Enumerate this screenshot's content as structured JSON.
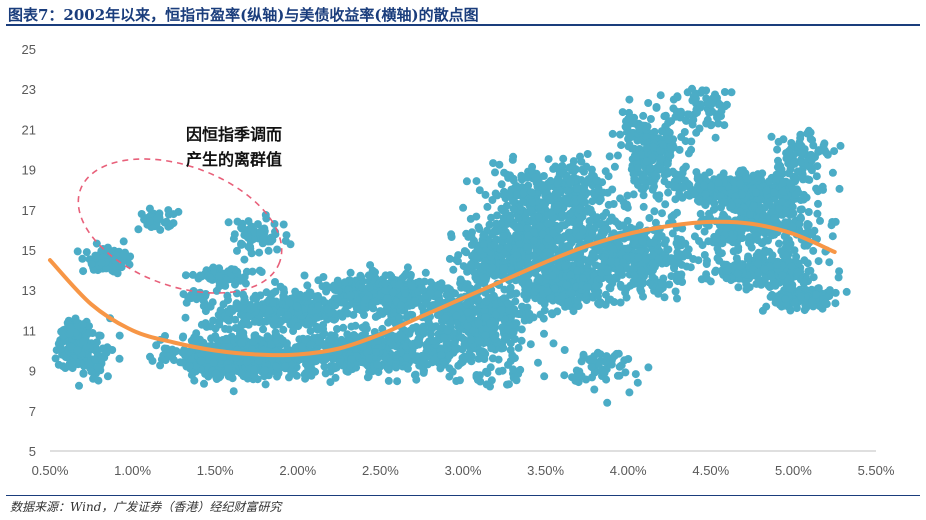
{
  "header": {
    "title": "图表7：2002年以来，恒指市盈率(纵轴)与美债收益率(横轴)的散点图"
  },
  "footer": {
    "source": "数据来源：Wind，广发证券（香港）经纪财富研究"
  },
  "chart_data": {
    "type": "scatter",
    "title": "",
    "xlabel": "",
    "ylabel": "",
    "xlim": [
      0.005,
      0.055
    ],
    "ylim": [
      5,
      25
    ],
    "x_ticks": [
      0.005,
      0.01,
      0.015,
      0.02,
      0.025,
      0.03,
      0.035,
      0.04,
      0.045,
      0.05,
      0.055
    ],
    "x_tick_labels": [
      "0.50%",
      "1.00%",
      "1.50%",
      "2.00%",
      "2.50%",
      "3.00%",
      "3.50%",
      "4.00%",
      "4.50%",
      "5.00%",
      "5.50%"
    ],
    "y_ticks": [
      5,
      7,
      9,
      11,
      13,
      15,
      17,
      19,
      21,
      23,
      25
    ],
    "y_tick_labels": [
      "5",
      "7",
      "9",
      "11",
      "13",
      "15",
      "17",
      "19",
      "21",
      "23",
      "25"
    ],
    "grid": false,
    "point_color": "#4bacc6",
    "trend_color": "#f79646",
    "outlier_ellipse_color": "#e8607a",
    "annotation": {
      "lines": [
        "因恒指季调而",
        "产生的离群值"
      ]
    },
    "series": [
      {
        "kind": "scatter",
        "clusters": [
          {
            "cx": 0.0165,
            "cy": 9.7,
            "sx": 0.0025,
            "sy": 0.7,
            "n": 700
          },
          {
            "cx": 0.0245,
            "cy": 9.9,
            "sx": 0.0035,
            "sy": 0.7,
            "n": 500
          },
          {
            "cx": 0.0195,
            "cy": 12.0,
            "sx": 0.0035,
            "sy": 0.6,
            "n": 350
          },
          {
            "cx": 0.0255,
            "cy": 12.9,
            "sx": 0.0025,
            "sy": 0.7,
            "n": 300
          },
          {
            "cx": 0.0305,
            "cy": 11.4,
            "sx": 0.0025,
            "sy": 1.2,
            "n": 450
          },
          {
            "cx": 0.0315,
            "cy": 14.5,
            "sx": 0.0012,
            "sy": 0.6,
            "n": 90
          },
          {
            "cx": 0.036,
            "cy": 13.3,
            "sx": 0.002,
            "sy": 0.8,
            "n": 300
          },
          {
            "cx": 0.0345,
            "cy": 15.3,
            "sx": 0.0025,
            "sy": 1.3,
            "n": 450
          },
          {
            "cx": 0.0355,
            "cy": 17.8,
            "sx": 0.0025,
            "sy": 1.0,
            "n": 300
          },
          {
            "cx": 0.0405,
            "cy": 14.8,
            "sx": 0.0025,
            "sy": 1.2,
            "n": 350
          },
          {
            "cx": 0.0415,
            "cy": 19.8,
            "sx": 0.0015,
            "sy": 1.3,
            "n": 220
          },
          {
            "cx": 0.047,
            "cy": 18.0,
            "sx": 0.0025,
            "sy": 0.5,
            "n": 350
          },
          {
            "cx": 0.048,
            "cy": 16.2,
            "sx": 0.0025,
            "sy": 0.9,
            "n": 280
          },
          {
            "cx": 0.0485,
            "cy": 13.9,
            "sx": 0.002,
            "sy": 0.5,
            "n": 200
          },
          {
            "cx": 0.0505,
            "cy": 12.6,
            "sx": 0.0012,
            "sy": 0.35,
            "n": 150
          },
          {
            "cx": 0.0505,
            "cy": 19.7,
            "sx": 0.0012,
            "sy": 0.7,
            "n": 80
          },
          {
            "cx": 0.0445,
            "cy": 22.0,
            "sx": 0.0012,
            "sy": 0.8,
            "n": 60
          },
          {
            "cx": 0.007,
            "cy": 9.8,
            "sx": 0.001,
            "sy": 0.7,
            "n": 120
          },
          {
            "cx": 0.0065,
            "cy": 11.0,
            "sx": 0.0007,
            "sy": 0.5,
            "n": 50
          },
          {
            "cx": 0.0085,
            "cy": 14.5,
            "sx": 0.001,
            "sy": 0.4,
            "n": 90
          },
          {
            "cx": 0.0115,
            "cy": 16.5,
            "sx": 0.0007,
            "sy": 0.5,
            "n": 40
          },
          {
            "cx": 0.0155,
            "cy": 13.7,
            "sx": 0.0012,
            "sy": 0.3,
            "n": 60
          },
          {
            "cx": 0.0175,
            "cy": 15.7,
            "sx": 0.0012,
            "sy": 0.6,
            "n": 60
          },
          {
            "cx": 0.0135,
            "cy": 12.7,
            "sx": 0.0005,
            "sy": 0.2,
            "n": 15
          },
          {
            "cx": 0.038,
            "cy": 9.0,
            "sx": 0.0015,
            "sy": 0.8,
            "n": 60
          },
          {
            "cx": 0.0315,
            "cy": 8.8,
            "sx": 0.002,
            "sy": 0.4,
            "n": 30
          }
        ]
      },
      {
        "kind": "trend",
        "x": [
          0.005,
          0.0075,
          0.01,
          0.0125,
          0.015,
          0.0175,
          0.02,
          0.0225,
          0.025,
          0.0275,
          0.03,
          0.0325,
          0.035,
          0.0375,
          0.04,
          0.0425,
          0.045,
          0.0475,
          0.05,
          0.0525
        ],
        "y": [
          14.5,
          12.3,
          11.0,
          10.4,
          10.0,
          9.8,
          9.8,
          10.1,
          10.8,
          11.7,
          12.6,
          13.5,
          14.4,
          15.2,
          15.8,
          16.2,
          16.4,
          16.3,
          15.8,
          14.9
        ]
      }
    ]
  }
}
